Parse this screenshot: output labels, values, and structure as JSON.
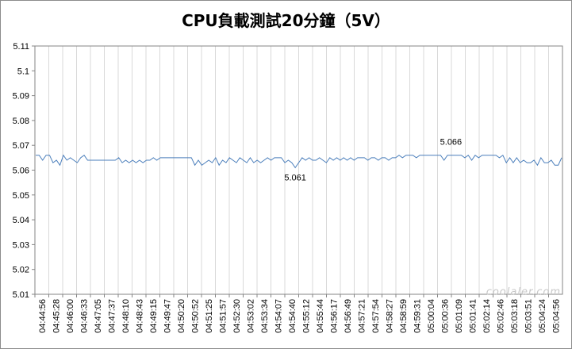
{
  "chart_data": {
    "type": "line",
    "title": "CPU負載測試20分鐘（5V）",
    "ylim": [
      5.01,
      5.11
    ],
    "yticks": [
      "5.11",
      "5.1",
      "5.09",
      "5.08",
      "5.07",
      "5.06",
      "5.05",
      "5.04",
      "5.03",
      "5.02",
      "5.01"
    ],
    "x_tick_labels": [
      "04:44:56",
      "04:45:28",
      "04:46:00",
      "04:46:33",
      "04:47:05",
      "04:47:37",
      "04:48:10",
      "04:48:43",
      "04:49:15",
      "04:49:47",
      "04:50:20",
      "04:50:52",
      "04:51:25",
      "04:51:57",
      "04:52:30",
      "04:53:02",
      "04:53:34",
      "04:54:07",
      "04:54:40",
      "04:55:12",
      "04:55:44",
      "04:56:17",
      "04:56:49",
      "04:57:21",
      "04:57:54",
      "04:58:27",
      "04:58:59",
      "04:59:31",
      "05:00:04",
      "05:00:36",
      "05:01:09",
      "05:01:41",
      "05:02:14",
      "05:02:46",
      "05:03:18",
      "05:03:51",
      "05:04:24",
      "05:04:56"
    ],
    "series": [
      {
        "color": "#4a7ebb",
        "values": [
          5.066,
          5.066,
          5.064,
          5.066,
          5.066,
          5.063,
          5.064,
          5.062,
          5.066,
          5.064,
          5.065,
          5.064,
          5.063,
          5.065,
          5.066,
          5.064,
          5.064,
          5.064,
          5.064,
          5.064,
          5.064,
          5.064,
          5.064,
          5.064,
          5.065,
          5.063,
          5.064,
          5.063,
          5.064,
          5.063,
          5.064,
          5.063,
          5.064,
          5.064,
          5.065,
          5.064,
          5.065,
          5.065,
          5.065,
          5.065,
          5.065,
          5.065,
          5.065,
          5.065,
          5.065,
          5.065,
          5.062,
          5.064,
          5.062,
          5.063,
          5.064,
          5.063,
          5.065,
          5.062,
          5.064,
          5.063,
          5.065,
          5.064,
          5.063,
          5.065,
          5.064,
          5.063,
          5.065,
          5.063,
          5.064,
          5.063,
          5.064,
          5.065,
          5.064,
          5.065,
          5.065,
          5.065,
          5.063,
          5.064,
          5.063,
          5.061,
          5.063,
          5.065,
          5.064,
          5.065,
          5.064,
          5.064,
          5.065,
          5.064,
          5.063,
          5.065,
          5.064,
          5.065,
          5.064,
          5.065,
          5.064,
          5.065,
          5.064,
          5.065,
          5.065,
          5.065,
          5.064,
          5.065,
          5.065,
          5.064,
          5.065,
          5.065,
          5.064,
          5.065,
          5.065,
          5.066,
          5.065,
          5.066,
          5.066,
          5.066,
          5.065,
          5.066,
          5.066,
          5.066,
          5.066,
          5.066,
          5.066,
          5.066,
          5.064,
          5.066,
          5.066,
          5.066,
          5.066,
          5.066,
          5.065,
          5.066,
          5.064,
          5.066,
          5.065,
          5.066,
          5.066,
          5.066,
          5.066,
          5.066,
          5.065,
          5.066,
          5.063,
          5.065,
          5.063,
          5.065,
          5.063,
          5.064,
          5.063,
          5.063,
          5.064,
          5.062,
          5.065,
          5.063,
          5.063,
          5.064,
          5.062,
          5.062,
          5.065
        ]
      }
    ],
    "annotations": [
      {
        "text": "5.061",
        "x_index": 75,
        "value": 5.061,
        "position": "below"
      },
      {
        "text": "5.066",
        "x_index": 120,
        "value": 5.066,
        "position": "above"
      }
    ],
    "grid": "vertical"
  },
  "watermark": "coolaler.com"
}
